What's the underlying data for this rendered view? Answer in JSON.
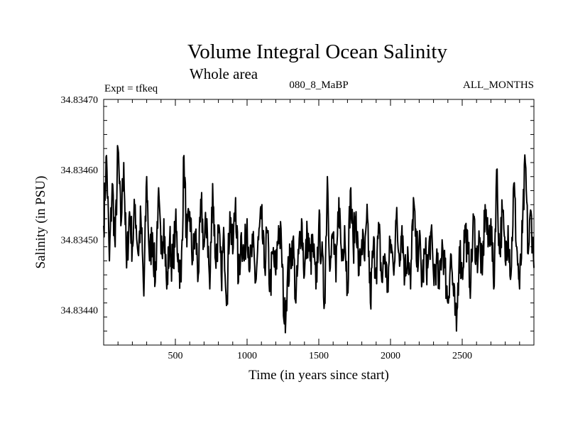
{
  "chart_data": {
    "type": "line",
    "title": "Volume Integral Ocean Salinity",
    "subtitle": "Whole area",
    "expt_label": "Expt = tfkeq",
    "run_label": "080_8_MaBP",
    "period_label": "ALL_MONTHS",
    "xlabel": "Time (in years since start)",
    "ylabel": "Salinity (in PSU)",
    "xlim": [
      0,
      3000
    ],
    "ylim": [
      34.83435,
      34.8347
    ],
    "x_ticks": [
      500,
      1000,
      1500,
      2000,
      2500
    ],
    "x_tick_labels": [
      "500",
      "1000",
      "1500",
      "2000",
      "2500"
    ],
    "y_ticks": [
      34.8344,
      34.8345,
      34.8346,
      34.8347
    ],
    "y_tick_labels": [
      "34.83440",
      "34.83450",
      "34.83460",
      "34.83470"
    ],
    "grid": false,
    "legend": "none",
    "line_color": "#000000",
    "series": [
      {
        "x": [
          0,
          20,
          40,
          60,
          80,
          100,
          120,
          140,
          160,
          180,
          200,
          220,
          240,
          260,
          280,
          300,
          320,
          340,
          360,
          380,
          400,
          420,
          440,
          460,
          480,
          500,
          520,
          540,
          560,
          580,
          600,
          620,
          640,
          660,
          680,
          700,
          720,
          740,
          760,
          780,
          800,
          820,
          840,
          860,
          880,
          900,
          920,
          940,
          960,
          980,
          1000,
          1020,
          1040,
          1060,
          1080,
          1100,
          1120,
          1140,
          1160,
          1180,
          1200,
          1220,
          1240,
          1260,
          1280,
          1300,
          1320,
          1340,
          1360,
          1380,
          1400,
          1420,
          1440,
          1460,
          1480,
          1500,
          1520,
          1540,
          1560,
          1580,
          1600,
          1620,
          1640,
          1660,
          1680,
          1700,
          1720,
          1740,
          1760,
          1780,
          1800,
          1820,
          1840,
          1860,
          1880,
          1900,
          1920,
          1940,
          1960,
          1980,
          2000,
          2020,
          2040,
          2060,
          2080,
          2100,
          2120,
          2140,
          2160,
          2180,
          2200,
          2220,
          2240,
          2260,
          2280,
          2300,
          2320,
          2340,
          2360,
          2380,
          2400,
          2420,
          2440,
          2460,
          2480,
          2500,
          2520,
          2540,
          2560,
          2580,
          2600,
          2620,
          2640,
          2660,
          2680,
          2700,
          2720,
          2740,
          2760,
          2780,
          2800,
          2820,
          2840,
          2860,
          2880,
          2900,
          2920,
          2940,
          2960,
          2980,
          3000
        ],
        "y": [
          34.83452,
          34.83462,
          34.83447,
          34.83458,
          34.83449,
          34.83463,
          34.83452,
          34.83461,
          34.83446,
          34.83454,
          34.83449,
          34.83455,
          34.83448,
          34.83453,
          34.83442,
          34.83459,
          34.83447,
          34.83451,
          34.83444,
          34.83456,
          34.83448,
          34.83453,
          34.83443,
          34.8345,
          34.83446,
          34.83452,
          34.83448,
          34.83444,
          34.83462,
          34.83449,
          34.83454,
          34.83447,
          34.83451,
          34.83445,
          34.83455,
          34.83449,
          34.83453,
          34.83443,
          34.83458,
          34.83447,
          34.83451,
          34.83445,
          34.8345,
          34.83442,
          34.83454,
          34.83448,
          34.83456,
          34.83444,
          34.83451,
          34.83447,
          34.83453,
          34.83446,
          34.83449,
          34.83444,
          34.8345,
          34.83453,
          34.83446,
          34.83451,
          34.83443,
          34.83448,
          34.83445,
          34.83452,
          34.83449,
          34.83438,
          34.83444,
          34.83447,
          34.8345,
          34.83441,
          34.83448,
          34.83453,
          34.83445,
          34.83451,
          34.83447,
          34.83449,
          34.83443,
          34.83452,
          34.83448,
          34.83441,
          34.83459,
          34.83446,
          34.83451,
          34.83444,
          34.83456,
          34.83447,
          34.83452,
          34.83443,
          34.83457,
          34.83449,
          34.83454,
          34.83445,
          34.8345,
          34.83447,
          34.83453,
          34.83441,
          34.83449,
          34.83446,
          34.83451,
          34.83444,
          34.83448,
          34.83443,
          34.8345,
          34.83446,
          34.83453,
          34.83448,
          34.83452,
          34.83445,
          34.83449,
          34.83443,
          34.83456,
          34.83447,
          34.8345,
          34.83444,
          34.83448,
          34.83446,
          34.83451,
          34.83445,
          34.83447,
          34.83443,
          34.8345,
          34.83446,
          34.83441,
          34.83448,
          34.83442,
          34.83437,
          34.83449,
          34.83445,
          34.83452,
          34.83448,
          34.83444,
          34.83453,
          34.83447,
          34.8345,
          34.83445,
          34.83455,
          34.83449,
          34.83453,
          34.83443,
          34.8346,
          34.83448,
          34.83454,
          34.83447,
          34.83452,
          34.83445,
          34.83458,
          34.83449,
          34.83443,
          34.83451,
          34.83461,
          34.83448,
          34.83454,
          34.83446
        ]
      }
    ]
  }
}
